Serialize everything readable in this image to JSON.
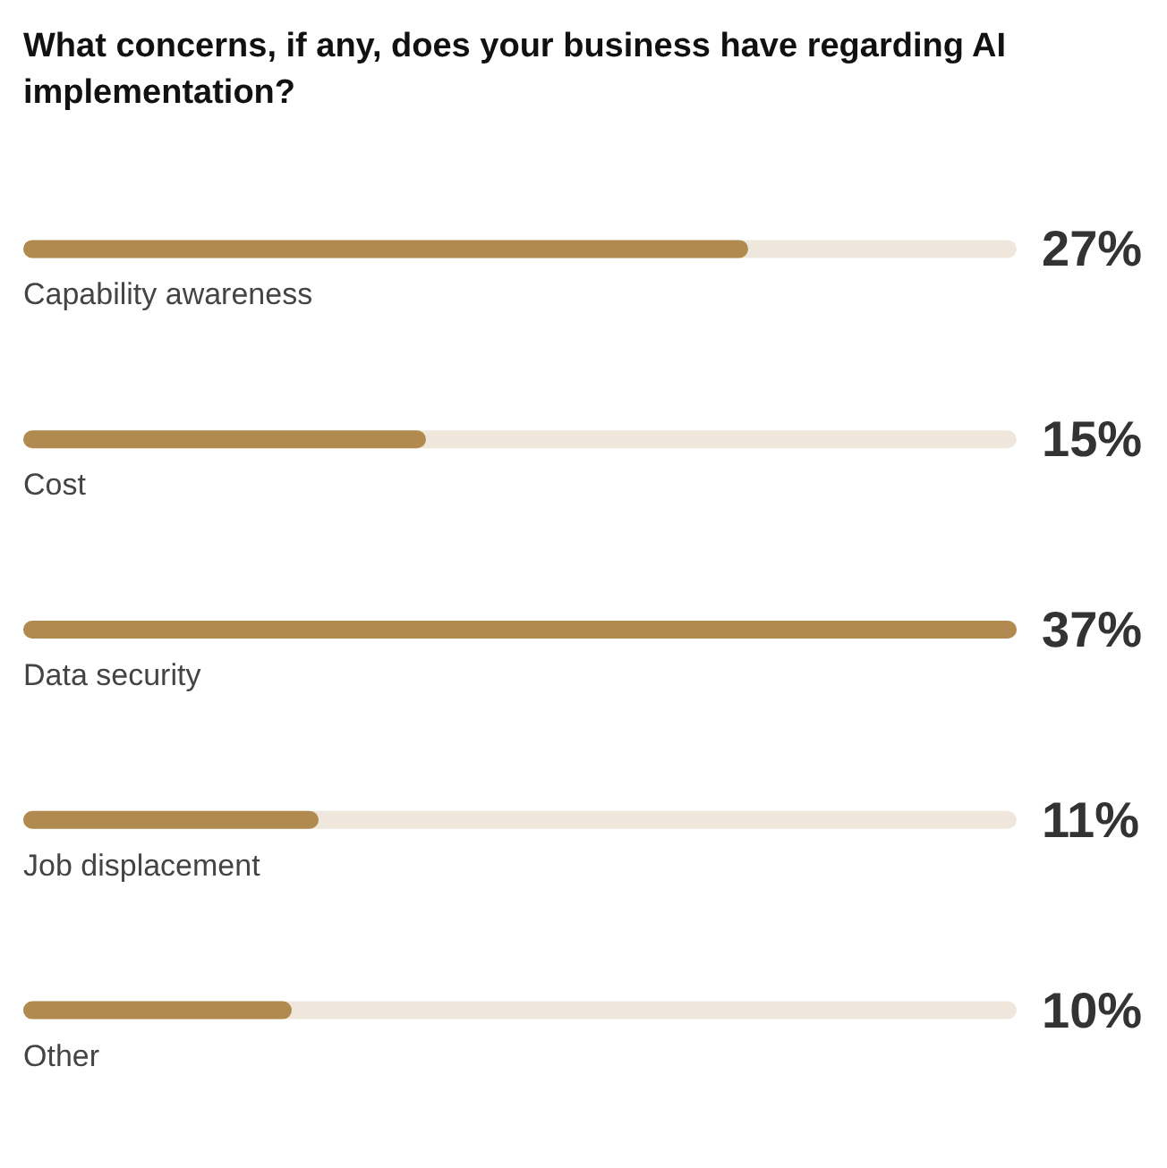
{
  "chart_data": {
    "type": "bar",
    "orientation": "horizontal",
    "title": "What concerns, if any, does your business have regarding AI implementation?",
    "categories": [
      "Capability awareness",
      "Cost",
      "Data security",
      "Job displacement",
      "Other"
    ],
    "values": [
      27,
      15,
      37,
      11,
      10
    ],
    "color": "#b08a4e",
    "data_labels": true,
    "value_labels": [
      "27%",
      "15%",
      "37%",
      "11%",
      "10%"
    ]
  }
}
